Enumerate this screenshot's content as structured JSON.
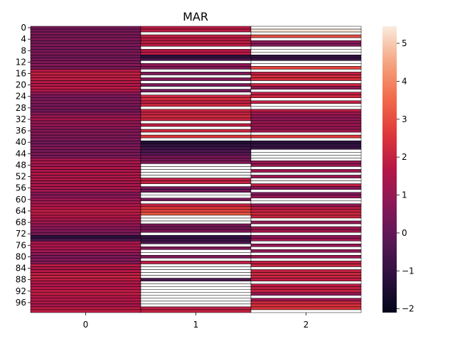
{
  "chart_data": {
    "type": "heatmap",
    "title": "MAR",
    "xlabel": "",
    "ylabel": "",
    "x_categories": [
      "0",
      "1",
      "2"
    ],
    "y_tick_labels": [
      "0",
      "4",
      "8",
      "12",
      "16",
      "20",
      "24",
      "28",
      "32",
      "36",
      "40",
      "44",
      "48",
      "52",
      "56",
      "60",
      "64",
      "68",
      "72",
      "76",
      "80",
      "84",
      "88",
      "92",
      "96"
    ],
    "row_count": 100,
    "colormap": "rocket",
    "missing_color": "#ffffff",
    "vmin": -2.1,
    "vmax": 5.45,
    "colorbar_ticks": [
      "5",
      "4",
      "3",
      "2",
      "1",
      "0",
      "−1",
      "−2"
    ],
    "colorbar_tick_values": [
      5,
      4,
      3,
      2,
      1,
      0,
      -1,
      -2
    ],
    "values": [
      [
        0.4,
        1.8,
        null
      ],
      [
        0.3,
        1.8,
        5.4
      ],
      [
        0.5,
        null,
        null
      ],
      [
        0.4,
        1.9,
        3.0
      ],
      [
        0.6,
        1.8,
        null
      ],
      [
        0.3,
        1.9,
        0.8
      ],
      [
        0.5,
        1.8,
        0.6
      ],
      [
        0.4,
        null,
        null
      ],
      [
        0.3,
        1.7,
        null
      ],
      [
        0.6,
        1.8,
        null
      ],
      [
        0.2,
        -1.2,
        -1.1
      ],
      [
        0.4,
        -0.6,
        -0.9
      ],
      [
        0.5,
        null,
        null
      ],
      [
        0.7,
        0.9,
        null
      ],
      [
        0.3,
        0.6,
        2.8
      ],
      [
        1.7,
        null,
        null
      ],
      [
        2.0,
        0.5,
        1.9
      ],
      [
        1.8,
        null,
        2.3
      ],
      [
        1.9,
        0.6,
        2.4
      ],
      [
        1.7,
        null,
        null
      ],
      [
        1.6,
        0.5,
        2.1
      ],
      [
        1.8,
        null,
        0.8
      ],
      [
        1.5,
        0.4,
        null
      ],
      [
        0.8,
        null,
        1.9
      ],
      [
        0.5,
        2.1,
        2.2
      ],
      [
        0.4,
        2.3,
        null
      ],
      [
        0.6,
        1.8,
        1.9
      ],
      [
        0.3,
        2.2,
        null
      ],
      [
        0.5,
        null,
        null
      ],
      [
        0.2,
        2.1,
        1.8
      ],
      [
        0.7,
        2.0,
        1.2
      ],
      [
        1.1,
        2.3,
        1.0
      ],
      [
        1.3,
        2.1,
        0.9
      ],
      [
        0.9,
        null,
        1.1
      ],
      [
        1.0,
        1.9,
        1.2
      ],
      [
        0.8,
        null,
        1.0
      ],
      [
        0.6,
        2.2,
        1.3
      ],
      [
        0.7,
        null,
        null
      ],
      [
        0.5,
        2.5,
        2.6
      ],
      [
        0.6,
        null,
        null
      ],
      [
        0.2,
        -1.4,
        -1.2
      ],
      [
        0.4,
        -1.1,
        -1.0
      ],
      [
        0.6,
        -0.8,
        -0.9
      ],
      [
        0.3,
        -0.5,
        null
      ],
      [
        0.5,
        -0.3,
        null
      ],
      [
        0.4,
        0.4,
        null
      ],
      [
        1.2,
        0.3,
        null
      ],
      [
        1.5,
        0.6,
        1.0
      ],
      [
        1.3,
        null,
        1.1
      ],
      [
        1.6,
        null,
        null
      ],
      [
        1.4,
        null,
        1.2
      ],
      [
        1.7,
        null,
        null
      ],
      [
        1.5,
        null,
        1.1
      ],
      [
        1.6,
        1.9,
        null
      ],
      [
        1.3,
        2.0,
        null
      ],
      [
        1.5,
        null,
        1.9
      ],
      [
        1.4,
        0.3,
        0.7
      ],
      [
        1.2,
        0.2,
        null
      ],
      [
        0.6,
        null,
        0.5
      ],
      [
        0.8,
        null,
        1.0
      ],
      [
        1.1,
        0.4,
        null
      ],
      [
        1.3,
        null,
        null
      ],
      [
        1.5,
        2.0,
        0.9
      ],
      [
        1.7,
        2.6,
        1.8
      ],
      [
        1.9,
        2.8,
        2.0
      ],
      [
        1.8,
        3.2,
        2.2
      ],
      [
        1.6,
        null,
        2.1
      ],
      [
        1.4,
        null,
        null
      ],
      [
        1.2,
        null,
        1.0
      ],
      [
        1.0,
        0.4,
        null
      ],
      [
        0.8,
        0.3,
        1.2
      ],
      [
        0.6,
        0.5,
        1.3
      ],
      [
        0.4,
        null,
        null
      ],
      [
        -1.2,
        -1.0,
        0.8
      ],
      [
        -0.6,
        -0.9,
        1.2
      ],
      [
        1.3,
        -0.5,
        null
      ],
      [
        1.5,
        null,
        1.0
      ],
      [
        1.4,
        0.6,
        null
      ],
      [
        1.2,
        null,
        0.9
      ],
      [
        0.8,
        null,
        null
      ],
      [
        0.5,
        0.5,
        1.1
      ],
      [
        0.7,
        null,
        null
      ],
      [
        0.6,
        1.9,
        1.9
      ],
      [
        1.8,
        null,
        2.1
      ],
      [
        1.5,
        null,
        null
      ],
      [
        1.7,
        null,
        2.0
      ],
      [
        1.9,
        null,
        2.2
      ],
      [
        2.0,
        null,
        2.1
      ],
      [
        1.8,
        -0.5,
        1.9
      ],
      [
        1.6,
        null,
        null
      ],
      [
        1.5,
        null,
        1.8
      ],
      [
        1.7,
        null,
        1.9
      ],
      [
        1.8,
        null,
        2.0
      ],
      [
        1.9,
        null,
        0.9
      ],
      [
        1.6,
        null,
        null
      ],
      [
        1.7,
        null,
        1.2
      ],
      [
        1.5,
        null,
        2.2
      ],
      [
        1.4,
        null,
        2.4
      ],
      [
        1.8,
        1.9,
        2.5
      ],
      [
        1.9,
        2.0,
        null
      ]
    ]
  }
}
